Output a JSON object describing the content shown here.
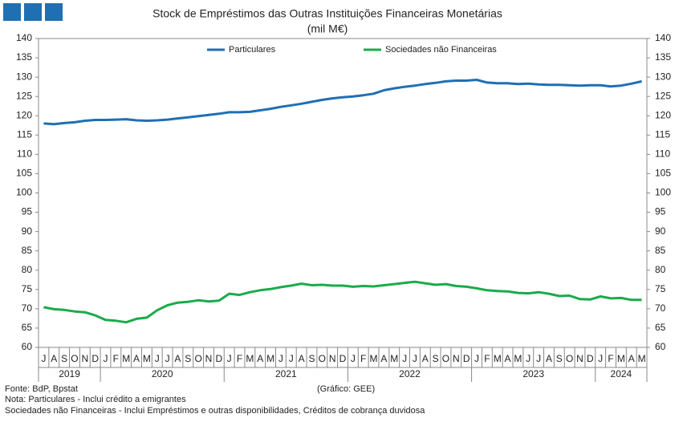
{
  "chart_data": {
    "type": "line",
    "title": "Stock de Empréstimos  das Outras Instituições  Financeiras Monetárias",
    "subtitle": "(mil M€)",
    "categories": [
      "J",
      "A",
      "S",
      "O",
      "N",
      "D",
      "J",
      "F",
      "M",
      "A",
      "M",
      "J",
      "J",
      "A",
      "S",
      "O",
      "N",
      "D",
      "J",
      "F",
      "M",
      "A",
      "M",
      "J",
      "J",
      "A",
      "S",
      "O",
      "N",
      "D",
      "J",
      "F",
      "M",
      "A",
      "M",
      "J",
      "J",
      "A",
      "S",
      "O",
      "N",
      "D",
      "J",
      "F",
      "M",
      "A",
      "M",
      "J",
      "J",
      "A",
      "S",
      "O",
      "N",
      "D",
      "J",
      "F",
      "M",
      "A",
      "M"
    ],
    "years": [
      "2019",
      "2020",
      "2021",
      "2022",
      "2023",
      "2024"
    ],
    "series": [
      {
        "name": "Particulares",
        "color": "#1f6fb4",
        "values": [
          118.0,
          117.8,
          118.1,
          118.3,
          118.7,
          118.9,
          118.9,
          119.0,
          119.1,
          118.8,
          118.7,
          118.8,
          119.0,
          119.3,
          119.6,
          119.9,
          120.2,
          120.5,
          120.9,
          120.9,
          121.0,
          121.4,
          121.8,
          122.3,
          122.7,
          123.1,
          123.6,
          124.1,
          124.5,
          124.8,
          125.0,
          125.3,
          125.7,
          126.6,
          127.1,
          127.5,
          127.8,
          128.2,
          128.5,
          128.9,
          129.1,
          129.1,
          129.3,
          128.6,
          128.4,
          128.4,
          128.2,
          128.3,
          128.1,
          128.0,
          128.0,
          127.9,
          127.8,
          127.9,
          127.9,
          127.6,
          127.8,
          128.3,
          128.9
        ]
      },
      {
        "name": "Sociedades não Financeiras",
        "color": "#1aab4b",
        "values": [
          70.4,
          69.9,
          69.7,
          69.3,
          69.1,
          68.3,
          67.1,
          66.9,
          66.5,
          67.4,
          67.7,
          69.6,
          70.9,
          71.6,
          71.8,
          72.2,
          71.9,
          72.1,
          73.9,
          73.6,
          74.3,
          74.8,
          75.1,
          75.6,
          76.0,
          76.5,
          76.1,
          76.2,
          76.0,
          76.0,
          75.7,
          75.9,
          75.8,
          76.1,
          76.4,
          76.7,
          77.0,
          76.6,
          76.2,
          76.4,
          75.9,
          75.7,
          75.3,
          74.8,
          74.6,
          74.5,
          74.1,
          74.0,
          74.3,
          73.9,
          73.3,
          73.4,
          72.5,
          72.4,
          73.2,
          72.7,
          72.8,
          72.3,
          72.3
        ]
      }
    ],
    "ylim": [
      60,
      140
    ],
    "yticks": [
      60,
      65,
      70,
      75,
      80,
      85,
      90,
      95,
      100,
      105,
      110,
      115,
      120,
      125,
      130,
      135,
      140
    ],
    "y2lim": [
      60,
      140
    ],
    "y2ticks": [
      60,
      65,
      70,
      75,
      80,
      85,
      90,
      95,
      100,
      105,
      110,
      115,
      120,
      125,
      130,
      135,
      140
    ],
    "legend": "top",
    "source": "Fonte: BdP, Bpstat",
    "credit": "(Gráfico: GEE)",
    "notes": [
      "Nota: Particulares - Inclui crédito a emigrantes",
      "Sociedades não Financeiras - Inclui Empréstimos e outras disponibilidades, Créditos de cobrança duvidosa"
    ]
  }
}
